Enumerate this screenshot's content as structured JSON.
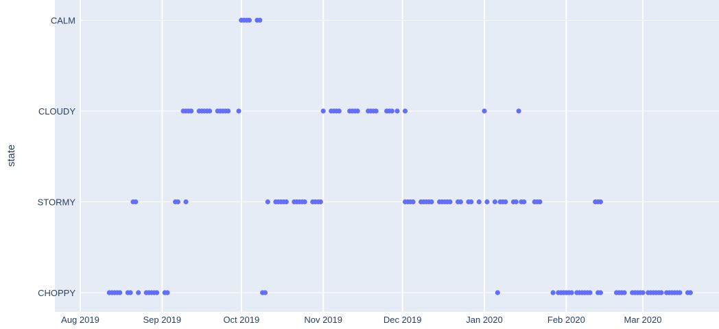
{
  "chart_data": {
    "type": "scatter",
    "ylabel": "state",
    "xlabel": "",
    "categories": [
      "CHOPPY",
      "STORMY",
      "CLOUDY",
      "CALM"
    ],
    "x_ticks": [
      {
        "date": "2019-08-01",
        "label": "Aug 2019"
      },
      {
        "date": "2019-09-01",
        "label": "Sep 2019"
      },
      {
        "date": "2019-10-01",
        "label": "Oct 2019"
      },
      {
        "date": "2019-11-01",
        "label": "Nov 2019"
      },
      {
        "date": "2019-12-01",
        "label": "Dec 2019"
      },
      {
        "date": "2020-01-01",
        "label": "Jan 2020"
      },
      {
        "date": "2020-02-01",
        "label": "Feb 2020"
      },
      {
        "date": "2020-03-01",
        "label": "Mar 2020"
      }
    ],
    "xlim": [
      "2019-07-30",
      "2020-04-01"
    ],
    "grid": true,
    "marker_color": "#636efa",
    "plot_bg": "#e5ecf6",
    "series": [
      {
        "points": [
          [
            "2019-08-12",
            "CHOPPY"
          ],
          [
            "2019-08-13",
            "CHOPPY"
          ],
          [
            "2019-08-14",
            "CHOPPY"
          ],
          [
            "2019-08-15",
            "CHOPPY"
          ],
          [
            "2019-08-16",
            "CHOPPY"
          ],
          [
            "2019-08-19",
            "CHOPPY"
          ],
          [
            "2019-08-20",
            "CHOPPY"
          ],
          [
            "2019-08-23",
            "CHOPPY"
          ],
          [
            "2019-08-26",
            "CHOPPY"
          ],
          [
            "2019-08-27",
            "CHOPPY"
          ],
          [
            "2019-08-28",
            "CHOPPY"
          ],
          [
            "2019-08-29",
            "CHOPPY"
          ],
          [
            "2019-08-30",
            "CHOPPY"
          ],
          [
            "2019-09-02",
            "CHOPPY"
          ],
          [
            "2019-09-03",
            "CHOPPY"
          ],
          [
            "2019-10-09",
            "CHOPPY"
          ],
          [
            "2019-10-10",
            "CHOPPY"
          ],
          [
            "2020-01-06",
            "CHOPPY"
          ],
          [
            "2020-01-27",
            "CHOPPY"
          ],
          [
            "2020-01-29",
            "CHOPPY"
          ],
          [
            "2020-01-30",
            "CHOPPY"
          ],
          [
            "2020-01-31",
            "CHOPPY"
          ],
          [
            "2020-02-01",
            "CHOPPY"
          ],
          [
            "2020-02-02",
            "CHOPPY"
          ],
          [
            "2020-02-03",
            "CHOPPY"
          ],
          [
            "2020-02-05",
            "CHOPPY"
          ],
          [
            "2020-02-06",
            "CHOPPY"
          ],
          [
            "2020-02-07",
            "CHOPPY"
          ],
          [
            "2020-02-08",
            "CHOPPY"
          ],
          [
            "2020-02-09",
            "CHOPPY"
          ],
          [
            "2020-02-10",
            "CHOPPY"
          ],
          [
            "2020-02-13",
            "CHOPPY"
          ],
          [
            "2020-02-14",
            "CHOPPY"
          ],
          [
            "2020-02-20",
            "CHOPPY"
          ],
          [
            "2020-02-21",
            "CHOPPY"
          ],
          [
            "2020-02-22",
            "CHOPPY"
          ],
          [
            "2020-02-23",
            "CHOPPY"
          ],
          [
            "2020-02-26",
            "CHOPPY"
          ],
          [
            "2020-02-27",
            "CHOPPY"
          ],
          [
            "2020-02-28",
            "CHOPPY"
          ],
          [
            "2020-02-29",
            "CHOPPY"
          ],
          [
            "2020-03-01",
            "CHOPPY"
          ],
          [
            "2020-03-03",
            "CHOPPY"
          ],
          [
            "2020-03-04",
            "CHOPPY"
          ],
          [
            "2020-03-05",
            "CHOPPY"
          ],
          [
            "2020-03-06",
            "CHOPPY"
          ],
          [
            "2020-03-07",
            "CHOPPY"
          ],
          [
            "2020-03-08",
            "CHOPPY"
          ],
          [
            "2020-03-10",
            "CHOPPY"
          ],
          [
            "2020-03-11",
            "CHOPPY"
          ],
          [
            "2020-03-12",
            "CHOPPY"
          ],
          [
            "2020-03-13",
            "CHOPPY"
          ],
          [
            "2020-03-14",
            "CHOPPY"
          ],
          [
            "2020-03-15",
            "CHOPPY"
          ],
          [
            "2020-03-18",
            "CHOPPY"
          ],
          [
            "2020-03-19",
            "CHOPPY"
          ],
          [
            "2019-08-21",
            "STORMY"
          ],
          [
            "2019-08-22",
            "STORMY"
          ],
          [
            "2019-09-06",
            "STORMY"
          ],
          [
            "2019-09-07",
            "STORMY"
          ],
          [
            "2019-09-10",
            "STORMY"
          ],
          [
            "2019-10-11",
            "STORMY"
          ],
          [
            "2019-10-14",
            "STORMY"
          ],
          [
            "2019-10-15",
            "STORMY"
          ],
          [
            "2019-10-16",
            "STORMY"
          ],
          [
            "2019-10-17",
            "STORMY"
          ],
          [
            "2019-10-18",
            "STORMY"
          ],
          [
            "2019-10-21",
            "STORMY"
          ],
          [
            "2019-10-22",
            "STORMY"
          ],
          [
            "2019-10-23",
            "STORMY"
          ],
          [
            "2019-10-24",
            "STORMY"
          ],
          [
            "2019-10-25",
            "STORMY"
          ],
          [
            "2019-10-28",
            "STORMY"
          ],
          [
            "2019-10-29",
            "STORMY"
          ],
          [
            "2019-10-30",
            "STORMY"
          ],
          [
            "2019-10-31",
            "STORMY"
          ],
          [
            "2019-12-02",
            "STORMY"
          ],
          [
            "2019-12-03",
            "STORMY"
          ],
          [
            "2019-12-04",
            "STORMY"
          ],
          [
            "2019-12-05",
            "STORMY"
          ],
          [
            "2019-12-08",
            "STORMY"
          ],
          [
            "2019-12-09",
            "STORMY"
          ],
          [
            "2019-12-10",
            "STORMY"
          ],
          [
            "2019-12-11",
            "STORMY"
          ],
          [
            "2019-12-12",
            "STORMY"
          ],
          [
            "2019-12-15",
            "STORMY"
          ],
          [
            "2019-12-16",
            "STORMY"
          ],
          [
            "2019-12-17",
            "STORMY"
          ],
          [
            "2019-12-18",
            "STORMY"
          ],
          [
            "2019-12-19",
            "STORMY"
          ],
          [
            "2019-12-22",
            "STORMY"
          ],
          [
            "2019-12-23",
            "STORMY"
          ],
          [
            "2019-12-26",
            "STORMY"
          ],
          [
            "2019-12-27",
            "STORMY"
          ],
          [
            "2019-12-30",
            "STORMY"
          ],
          [
            "2020-01-02",
            "STORMY"
          ],
          [
            "2020-01-05",
            "STORMY"
          ],
          [
            "2020-01-07",
            "STORMY"
          ],
          [
            "2020-01-08",
            "STORMY"
          ],
          [
            "2020-01-09",
            "STORMY"
          ],
          [
            "2020-01-12",
            "STORMY"
          ],
          [
            "2020-01-13",
            "STORMY"
          ],
          [
            "2020-01-15",
            "STORMY"
          ],
          [
            "2020-01-16",
            "STORMY"
          ],
          [
            "2020-01-20",
            "STORMY"
          ],
          [
            "2020-01-21",
            "STORMY"
          ],
          [
            "2020-01-22",
            "STORMY"
          ],
          [
            "2020-02-12",
            "STORMY"
          ],
          [
            "2020-02-13",
            "STORMY"
          ],
          [
            "2020-02-14",
            "STORMY"
          ],
          [
            "2019-09-09",
            "CLOUDY"
          ],
          [
            "2019-09-10",
            "CLOUDY"
          ],
          [
            "2019-09-11",
            "CLOUDY"
          ],
          [
            "2019-09-12",
            "CLOUDY"
          ],
          [
            "2019-09-15",
            "CLOUDY"
          ],
          [
            "2019-09-16",
            "CLOUDY"
          ],
          [
            "2019-09-17",
            "CLOUDY"
          ],
          [
            "2019-09-18",
            "CLOUDY"
          ],
          [
            "2019-09-19",
            "CLOUDY"
          ],
          [
            "2019-09-22",
            "CLOUDY"
          ],
          [
            "2019-09-23",
            "CLOUDY"
          ],
          [
            "2019-09-24",
            "CLOUDY"
          ],
          [
            "2019-09-25",
            "CLOUDY"
          ],
          [
            "2019-09-26",
            "CLOUDY"
          ],
          [
            "2019-09-30",
            "CLOUDY"
          ],
          [
            "2019-11-01",
            "CLOUDY"
          ],
          [
            "2019-11-04",
            "CLOUDY"
          ],
          [
            "2019-11-05",
            "CLOUDY"
          ],
          [
            "2019-11-06",
            "CLOUDY"
          ],
          [
            "2019-11-07",
            "CLOUDY"
          ],
          [
            "2019-11-11",
            "CLOUDY"
          ],
          [
            "2019-11-12",
            "CLOUDY"
          ],
          [
            "2019-11-13",
            "CLOUDY"
          ],
          [
            "2019-11-14",
            "CLOUDY"
          ],
          [
            "2019-11-18",
            "CLOUDY"
          ],
          [
            "2019-11-19",
            "CLOUDY"
          ],
          [
            "2019-11-20",
            "CLOUDY"
          ],
          [
            "2019-11-21",
            "CLOUDY"
          ],
          [
            "2019-11-25",
            "CLOUDY"
          ],
          [
            "2019-11-26",
            "CLOUDY"
          ],
          [
            "2019-11-27",
            "CLOUDY"
          ],
          [
            "2019-11-29",
            "CLOUDY"
          ],
          [
            "2019-12-02",
            "CLOUDY"
          ],
          [
            "2020-01-01",
            "CLOUDY"
          ],
          [
            "2020-01-14",
            "CLOUDY"
          ],
          [
            "2019-10-01",
            "CALM"
          ],
          [
            "2019-10-02",
            "CALM"
          ],
          [
            "2019-10-03",
            "CALM"
          ],
          [
            "2019-10-04",
            "CALM"
          ],
          [
            "2019-10-07",
            "CALM"
          ],
          [
            "2019-10-08",
            "CALM"
          ]
        ]
      }
    ]
  }
}
